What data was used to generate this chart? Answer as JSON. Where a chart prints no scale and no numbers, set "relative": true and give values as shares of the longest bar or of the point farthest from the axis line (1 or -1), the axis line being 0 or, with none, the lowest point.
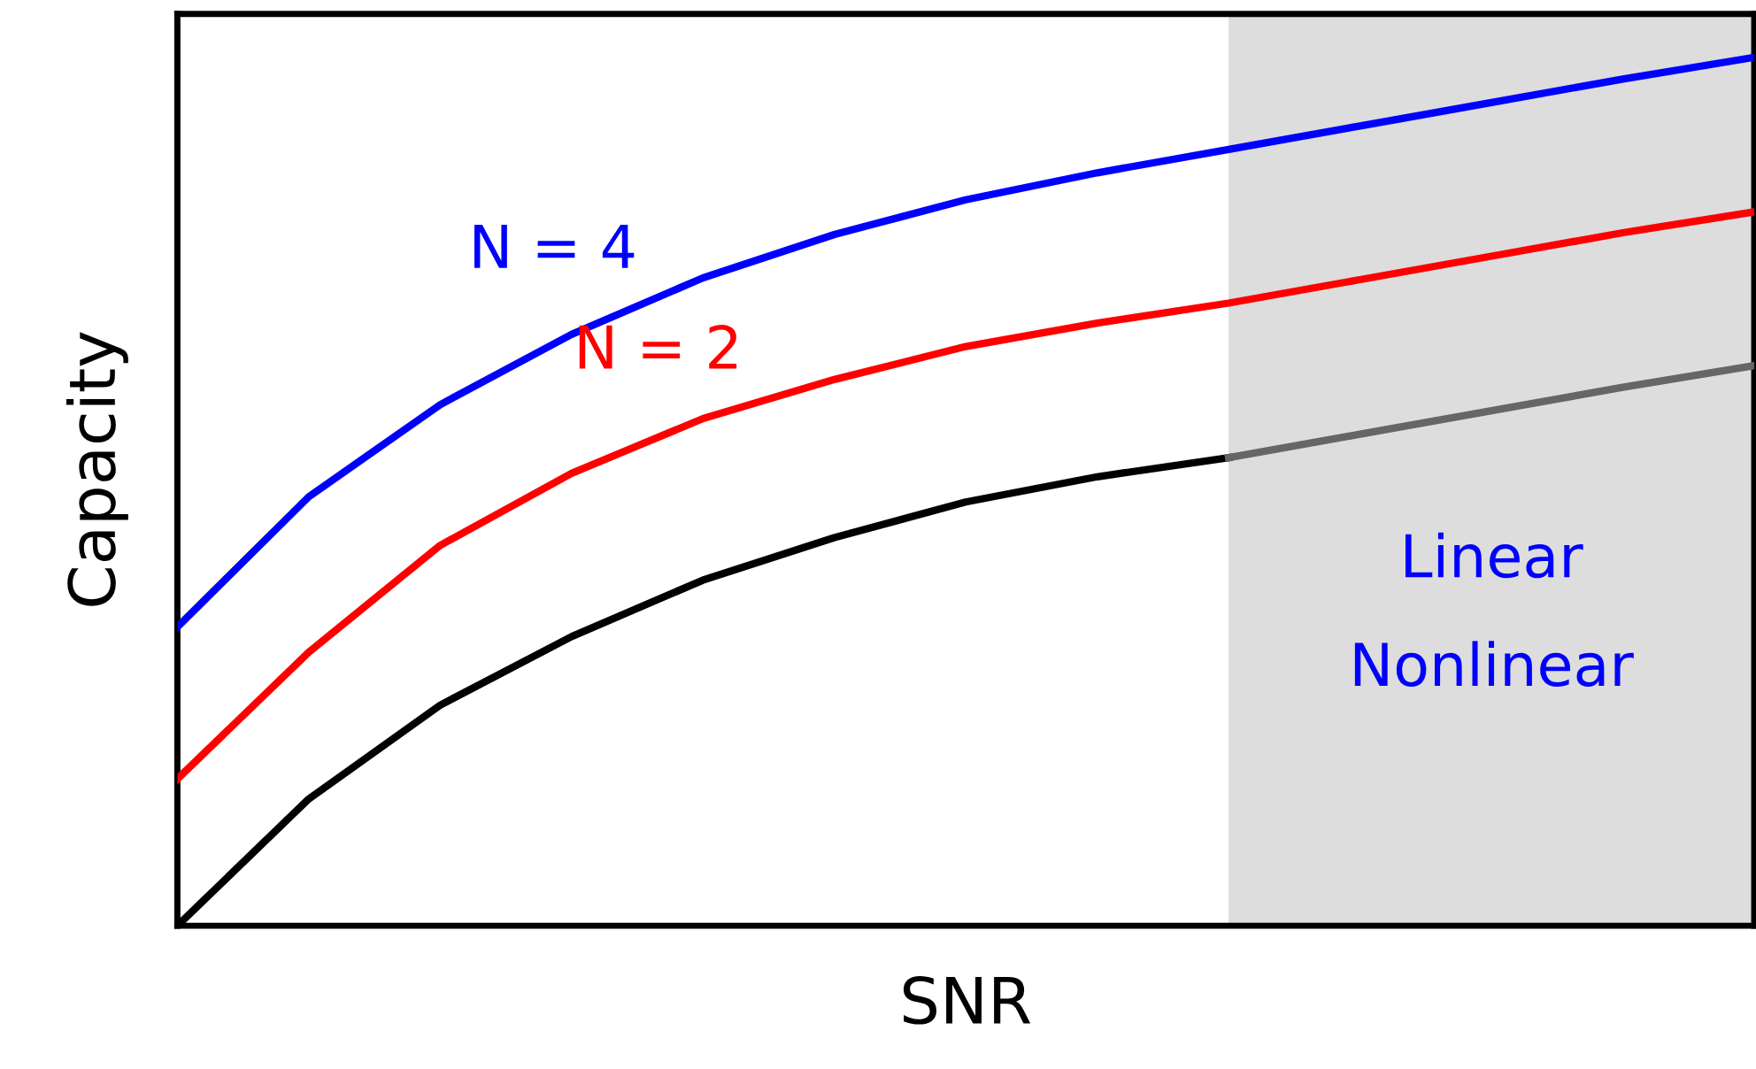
{
  "chart_data": {
    "type": "line",
    "relative": true,
    "xlabel": "SNR",
    "ylabel": "Capacity",
    "legend": false,
    "marker": "none",
    "line_style": "solid",
    "categories": [
      null,
      null,
      null,
      null,
      null,
      null,
      null,
      null,
      null,
      null,
      null,
      null,
      null
    ],
    "series": [
      {
        "name": "N = 4",
        "color": "#0000ff",
        "values": [
          0.344,
          0.494,
          0.6,
          0.681,
          0.746,
          0.796,
          0.836,
          0.867,
          0.894,
          0.921,
          0.948,
          0.975,
          1
        ]
      },
      {
        "name": "N = 2",
        "color": "#ff0000",
        "values": [
          0.169,
          0.315,
          0.438,
          0.521,
          0.584,
          0.629,
          0.667,
          0.694,
          0.717,
          0.744,
          0.771,
          0.798,
          0.822
        ]
      },
      {
        "color": "#000000",
        "values": [
          0,
          0.146,
          0.254,
          0.333,
          0.398,
          0.447,
          0.488,
          0.517,
          0.539,
          null,
          null,
          null,
          null
        ]
      },
      {
        "color": "#666666",
        "values": [
          null,
          null,
          null,
          null,
          null,
          null,
          null,
          null,
          0.539,
          0.566,
          0.593,
          0.62,
          0.645
        ]
      }
    ],
    "annotations": [
      "Linear",
      "Nonlinear"
    ]
  }
}
